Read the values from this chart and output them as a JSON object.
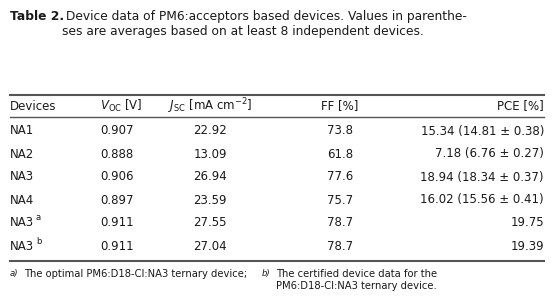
{
  "title_bold": "Table 2.",
  "title_normal": " Device data of PM6:acceptors based devices. Values in parenthe-\nses are averages based on at least 8 independent devices.",
  "rows": [
    [
      "NA1",
      "0.907",
      "22.92",
      "73.8",
      "15.34 (14.81 ± 0.38)"
    ],
    [
      "NA2",
      "0.888",
      "13.09",
      "61.8",
      "7.18 (6.76 ± 0.27)"
    ],
    [
      "NA3",
      "0.906",
      "26.94",
      "77.6",
      "18.94 (18.34 ± 0.37)"
    ],
    [
      "NA4",
      "0.897",
      "23.59",
      "75.7",
      "16.02 (15.56 ± 0.41)"
    ],
    [
      "NA3",
      "a)",
      "0.911",
      "27.55",
      "78.7",
      "19.75"
    ],
    [
      "NA3",
      "b)",
      "0.911",
      "27.04",
      "78.7",
      "19.39"
    ]
  ],
  "footnote_a_super": "a)",
  "footnote_a_text": " The optimal PM6:D18-Cl:NA3 ternary device;",
  "footnote_b_super": "b)",
  "footnote_b_text": " The certified device data for the\nPM6:D18-Cl:NA3 ternary device.",
  "bg_color": "#ffffff",
  "text_color": "#1a1a1a",
  "line_color": "#555555",
  "font_size_title": 8.8,
  "font_size_table": 8.5,
  "font_size_footnote": 7.2
}
